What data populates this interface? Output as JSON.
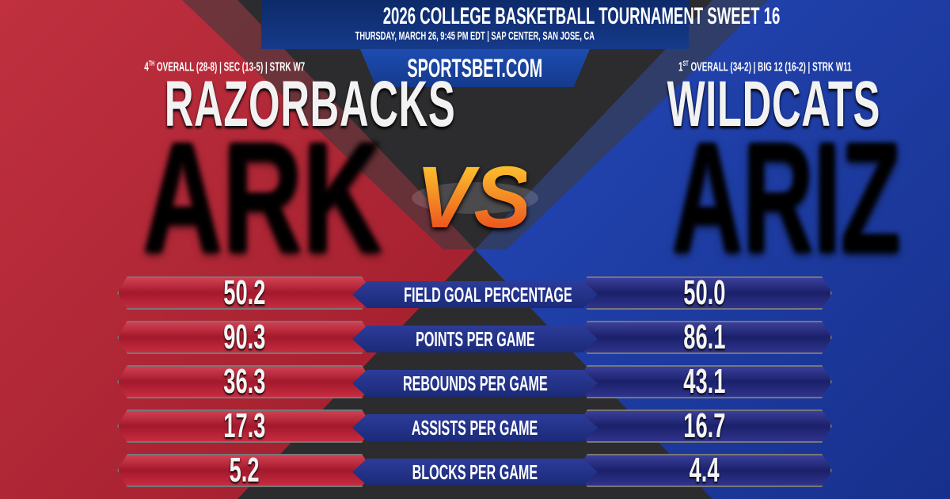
{
  "header": {
    "title": "2026 COLLEGE BASKETBALL TOURNAMENT SWEET 16",
    "subtitle": "THURSDAY, MARCH 26, 9:45 PM EDT | SAP CENTER, SAN JOSE, CA",
    "site": "SPORTSBET.COM"
  },
  "colors": {
    "left": "#b8283a",
    "right": "#1e3fa8",
    "center": "#2b2b2d"
  },
  "left_team": {
    "rank": "4",
    "rank_suffix": "TH",
    "record": "OVERALL (28-8) | SEC (13-5) | STRK W7",
    "nickname": "RAZORBACKS",
    "abbr": "ARK"
  },
  "right_team": {
    "rank": "1",
    "rank_suffix": "ST",
    "record": "OVERALL (34-2) | BIG 12 (16-2) | STRK W11",
    "nickname": "WILDCATS",
    "abbr": "ARIZ"
  },
  "vs": "VS",
  "stats": [
    {
      "label": "FIELD GOAL PERCENTAGE",
      "left": "50.2",
      "right": "50.0"
    },
    {
      "label": "POINTS PER GAME",
      "left": "90.3",
      "right": "86.1"
    },
    {
      "label": "REBOUNDS PER GAME",
      "left": "36.3",
      "right": "43.1"
    },
    {
      "label": "ASSISTS PER GAME",
      "left": "17.3",
      "right": "16.7"
    },
    {
      "label": "BLOCKS PER GAME",
      "left": "5.2",
      "right": "4.4"
    }
  ]
}
